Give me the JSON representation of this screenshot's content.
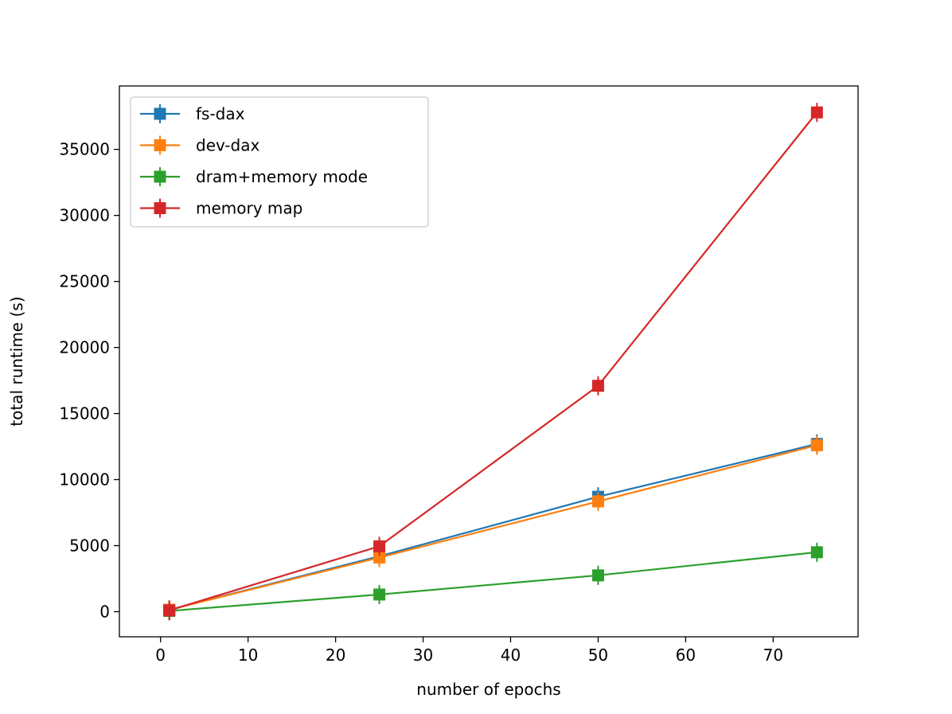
{
  "chart_data": {
    "type": "line",
    "title": "",
    "xlabel": "number of epochs",
    "ylabel": "total runtime (s)",
    "xlim": [
      -4.7,
      79.7
    ],
    "ylim": [
      -1900,
      39800
    ],
    "xticks": [
      0,
      10,
      20,
      30,
      40,
      50,
      60,
      70
    ],
    "yticks": [
      0,
      5000,
      10000,
      15000,
      20000,
      25000,
      30000,
      35000
    ],
    "xtick_labels": [
      "0",
      "10",
      "20",
      "30",
      "40",
      "50",
      "60",
      "70"
    ],
    "ytick_labels": [
      "0",
      "5000",
      "10000",
      "15000",
      "20000",
      "25000",
      "30000",
      "35000"
    ],
    "x": [
      1,
      25,
      50,
      75
    ],
    "grid": false,
    "legend_position": "upper-left",
    "marker": "square-with-errorbar",
    "series": [
      {
        "name": "fs-dax",
        "color": "#1f77b4",
        "values": [
          150,
          4200,
          8700,
          12700
        ]
      },
      {
        "name": "dev-dax",
        "color": "#ff7f0e",
        "values": [
          150,
          4100,
          8350,
          12600
        ]
      },
      {
        "name": "dram+memory mode",
        "color": "#2ca02c",
        "values": [
          60,
          1300,
          2750,
          4500
        ]
      },
      {
        "name": "memory map",
        "color": "#d62728",
        "values": [
          100,
          4950,
          17100,
          37800
        ]
      }
    ]
  }
}
